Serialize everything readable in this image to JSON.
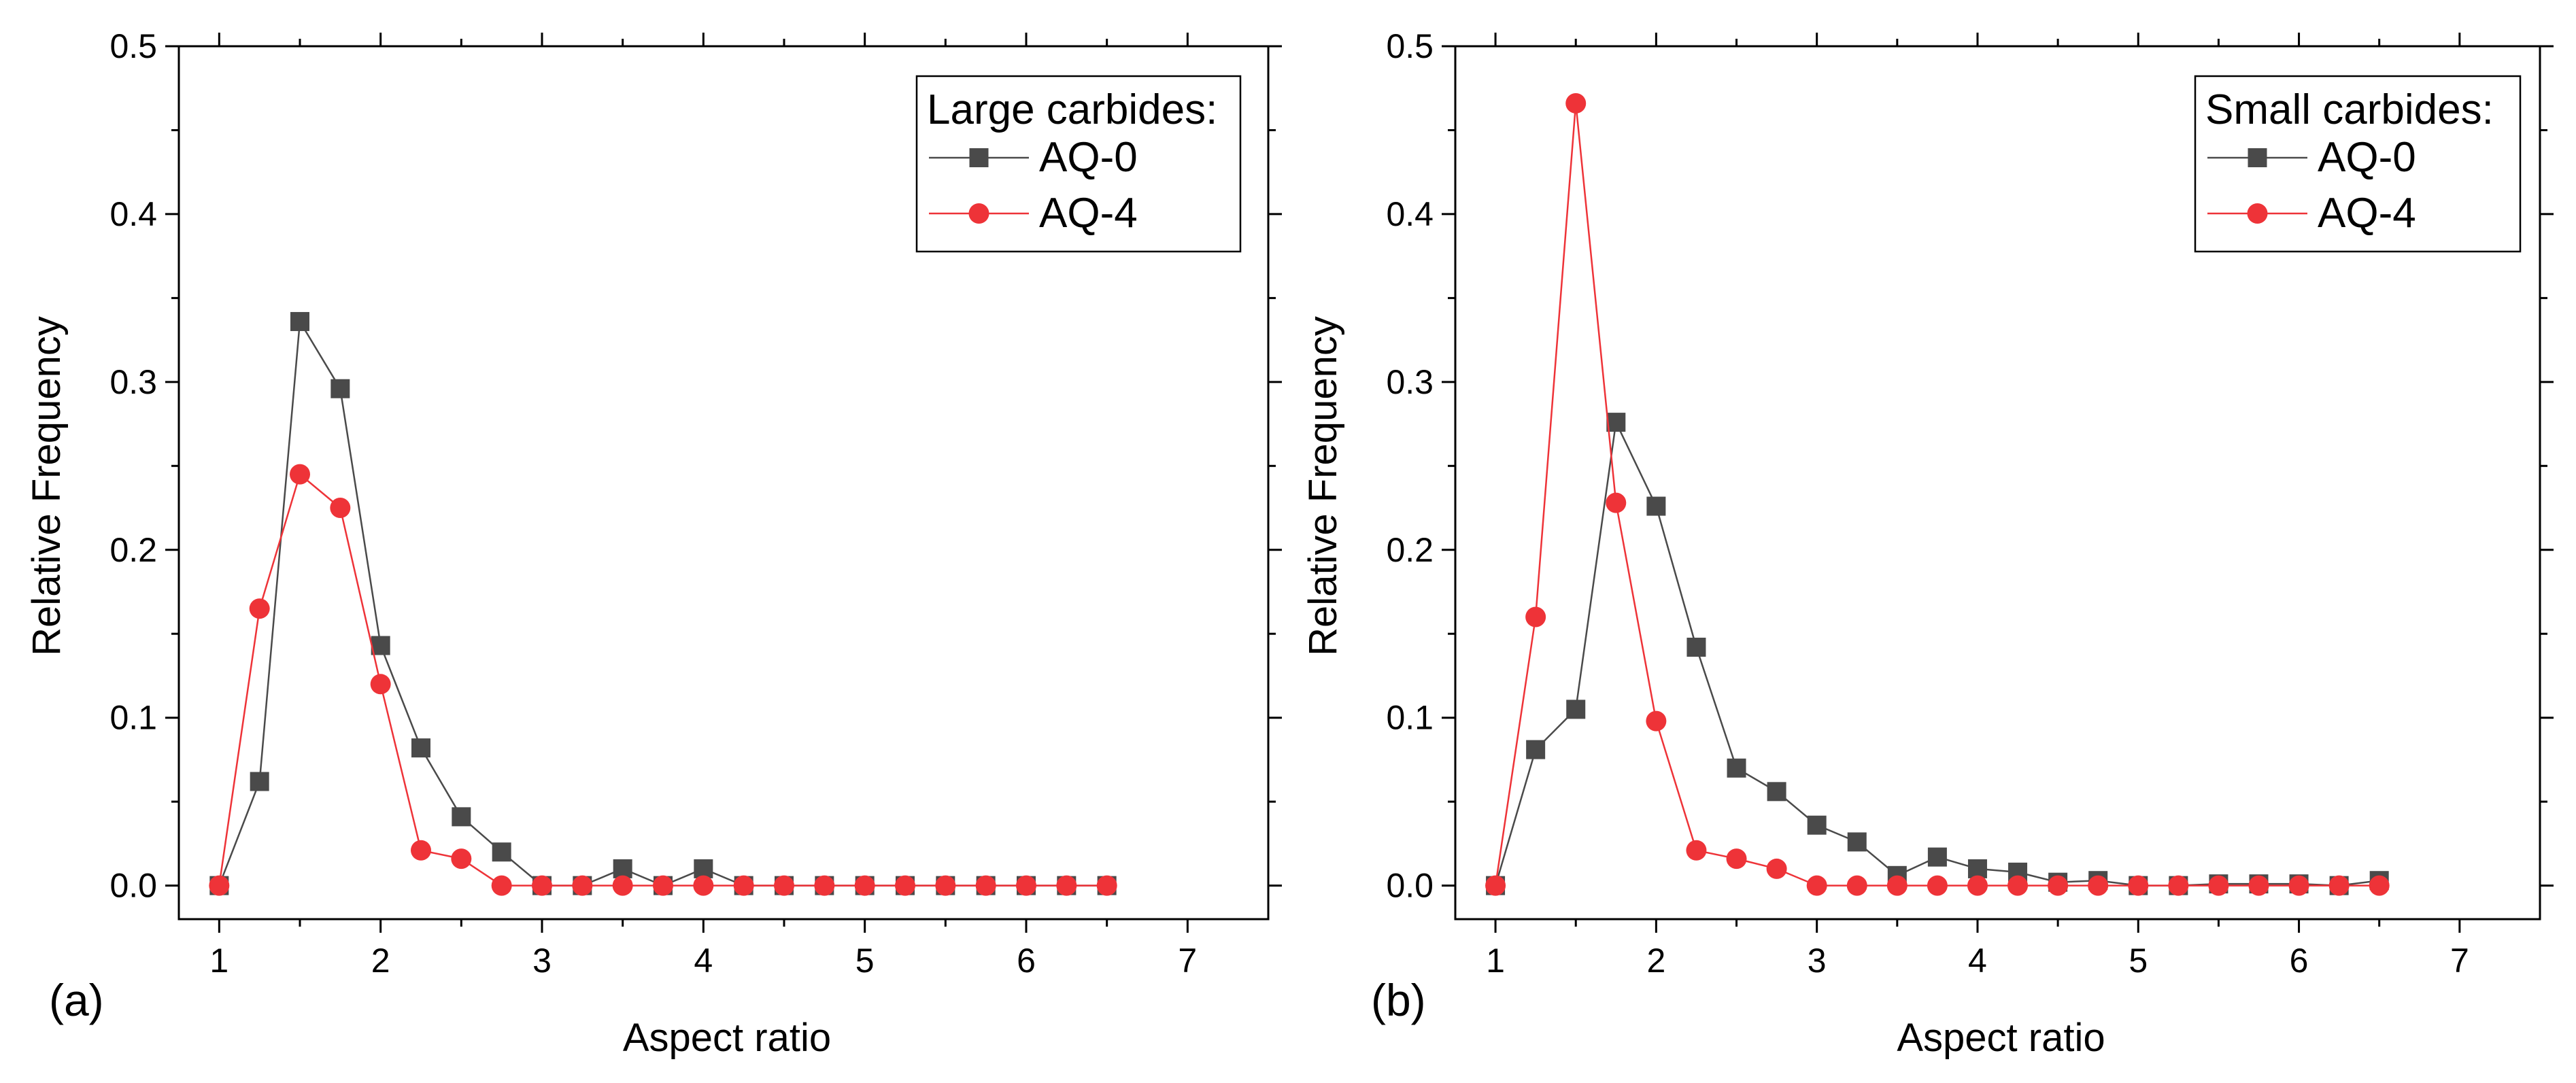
{
  "chart_data": [
    {
      "type": "line",
      "panel_label": "(a)",
      "xlabel": "Aspect ratio",
      "ylabel": "Relative Frequency",
      "xlim": [
        0.75,
        7.5
      ],
      "ylim": [
        -0.02,
        0.5
      ],
      "xticks": [
        1,
        2,
        3,
        4,
        5,
        6,
        7
      ],
      "yticks": [
        0.0,
        0.1,
        0.2,
        0.3,
        0.4,
        0.5
      ],
      "xtick_labels": [
        "1",
        "2",
        "3",
        "4",
        "5",
        "6",
        "7"
      ],
      "ytick_labels": [
        "0.0",
        "0.1",
        "0.2",
        "0.3",
        "0.4",
        "0.5"
      ],
      "grid": false,
      "legend": {
        "title": "Large carbides:",
        "position": "top-right"
      },
      "x": [
        1,
        1.25,
        1.5,
        1.75,
        2,
        2.25,
        2.5,
        2.75,
        3,
        3.25,
        3.5,
        3.75,
        4,
        4.25,
        4.5,
        4.75,
        5,
        5.25,
        5.5,
        5.75,
        6,
        6.25,
        6.5
      ],
      "series": [
        {
          "name": "AQ-0",
          "marker": "square",
          "color": "#4a4a4a",
          "values": [
            0,
            0.062,
            0.336,
            0.296,
            0.143,
            0.082,
            0.041,
            0.02,
            0,
            0,
            0.01,
            0,
            0.01,
            0,
            0,
            0,
            0,
            0,
            0,
            0,
            0,
            0,
            0
          ]
        },
        {
          "name": "AQ-4",
          "marker": "circle",
          "color": "#ee3338",
          "values": [
            0,
            0.165,
            0.245,
            0.225,
            0.12,
            0.021,
            0.016,
            0,
            0,
            0,
            0,
            0,
            0,
            0,
            0,
            0,
            0,
            0,
            0,
            0,
            0,
            0,
            0
          ]
        }
      ]
    },
    {
      "type": "line",
      "panel_label": "(b)",
      "xlabel": "Aspect ratio",
      "ylabel": "Relative Frequency",
      "xlim": [
        0.75,
        7.5
      ],
      "ylim": [
        -0.02,
        0.5
      ],
      "xticks": [
        1,
        2,
        3,
        4,
        5,
        6,
        7
      ],
      "yticks": [
        0.0,
        0.1,
        0.2,
        0.3,
        0.4,
        0.5
      ],
      "xtick_labels": [
        "1",
        "2",
        "3",
        "4",
        "5",
        "6",
        "7"
      ],
      "ytick_labels": [
        "0.0",
        "0.1",
        "0.2",
        "0.3",
        "0.4",
        "0.5"
      ],
      "grid": false,
      "legend": {
        "title": "Small carbides:",
        "position": "top-right"
      },
      "x": [
        1,
        1.25,
        1.5,
        1.75,
        2,
        2.25,
        2.5,
        2.75,
        3,
        3.25,
        3.5,
        3.75,
        4,
        4.25,
        4.5,
        4.75,
        5,
        5.25,
        5.5,
        5.75,
        6,
        6.25,
        6.5
      ],
      "series": [
        {
          "name": "AQ-0",
          "marker": "square",
          "color": "#4a4a4a",
          "values": [
            0,
            0.081,
            0.105,
            0.276,
            0.226,
            0.142,
            0.07,
            0.056,
            0.036,
            0.026,
            0.006,
            0.017,
            0.01,
            0.008,
            0.002,
            0.003,
            0,
            0,
            0.001,
            0.001,
            0.001,
            0,
            0.003
          ]
        },
        {
          "name": "AQ-4",
          "marker": "circle",
          "color": "#ee3338",
          "values": [
            0,
            0.16,
            0.466,
            0.228,
            0.098,
            0.021,
            0.016,
            0.01,
            0,
            0,
            0,
            0,
            0,
            0,
            0,
            0,
            0,
            0,
            0,
            0,
            0,
            0,
            0
          ]
        }
      ]
    }
  ]
}
